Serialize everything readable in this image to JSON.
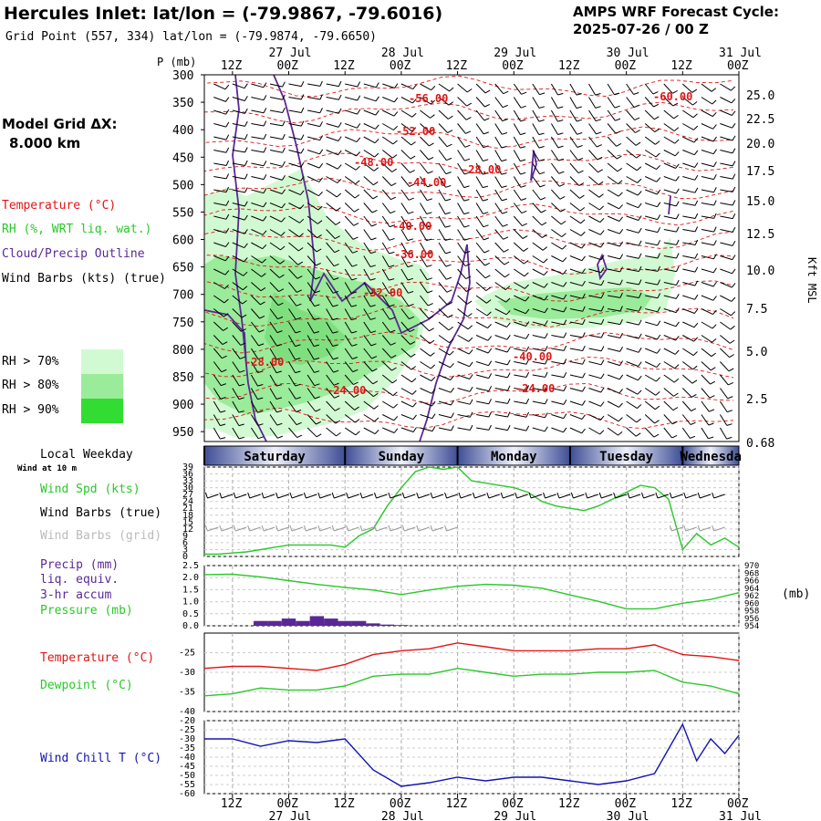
{
  "header": {
    "title": "Hercules Inlet:  lat/lon = (-79.9867, -79.6016)",
    "subtitle": "Grid Point (557, 334) lat/lon = (-79.9874, -79.6650)",
    "cycle_line1": "AMPS WRF Forecast Cycle:",
    "cycle_line2": "2025-07-26 / 00  Z"
  },
  "legend": {
    "model_grid_line1": "Model Grid ΔX:",
    "model_grid_line2": "8.000 km",
    "temperature": "Temperature (°C)",
    "rh": "RH (%, WRT liq. wat.)",
    "cloud": "Cloud/Precip Outline",
    "wind": "Wind Barbs (kts) (true)",
    "rh70": "RH > 70%",
    "rh80": "RH > 80%",
    "rh90": "RH > 90%",
    "rh70_color": "#d2fad2",
    "rh80_color": "#9aeb9a",
    "rh90_color": "#32dc32",
    "local_weekday": "Local Weekday",
    "wind_at": "Wind at 10 m",
    "wind_spd": "Wind Spd (kts)",
    "wind_barbs_true": "Wind Barbs (true)",
    "wind_barbs_grid": "Wind Barbs (grid)",
    "precip1": "Precip (mm)",
    "precip2": "liq. equiv.",
    "precip3": "3-hr accum",
    "pressure": "Pressure (mb)",
    "mb_unit": "(mb)",
    "temp2": "Temperature (°C)",
    "dewpoint": "Dewpoint (°C)",
    "windchill": "Wind Chill T (°C)"
  },
  "axes": {
    "p_label": "P (mb)",
    "kft_label": "Kft MSL",
    "time_ticks": [
      "12Z",
      "00Z",
      "12Z",
      "00Z",
      "12Z",
      "00Z",
      "12Z",
      "00Z",
      "12Z",
      "00Z"
    ],
    "date_labels": [
      "27 Jul",
      "28 Jul",
      "29 Jul",
      "30 Jul",
      "31 Jul"
    ],
    "pressure_levels": [
      "300",
      "350",
      "400",
      "450",
      "500",
      "550",
      "600",
      "650",
      "700",
      "750",
      "800",
      "850",
      "900",
      "950"
    ],
    "kft_ticks": [
      "25.0",
      "22.5",
      "20.0",
      "17.5",
      "15.0",
      "12.5",
      "10.0",
      "7.5",
      "5.0",
      "2.5",
      "0.68"
    ],
    "weekdays": [
      "Saturday",
      "Sunday",
      "Monday",
      "Tuesday",
      "Wednesda"
    ]
  },
  "chart_data": [
    {
      "type": "heatmap",
      "name": "time-height cross section",
      "x_unit": "hours from 2025-07-26 00Z",
      "x_range": [
        6,
        120
      ],
      "y_range_mb": [
        300,
        968
      ],
      "temperature_contour_labels": [
        "-56.00",
        "-52.00",
        "-48.00",
        "-44.00",
        "-40.00",
        "-36.00",
        "-32.00",
        "-28.00",
        "-24.00",
        "-28.00",
        "-60.00",
        "-40.00",
        "-24.00",
        "-20.00"
      ],
      "temperature_color": "#e11414",
      "cloud_outline_color": "#5a2896"
    },
    {
      "type": "line",
      "name": "Wind Spd (kts)",
      "x": [
        6,
        9,
        12,
        15,
        18,
        21,
        24,
        27,
        30,
        33,
        36,
        39,
        42,
        45,
        48,
        51,
        54,
        57,
        60,
        63,
        66,
        69,
        72,
        75,
        78,
        81,
        84,
        87,
        90,
        93,
        96,
        99,
        102,
        105,
        108,
        111,
        114,
        117,
        120
      ],
      "values": [
        1,
        1,
        1.5,
        2,
        3,
        4,
        5,
        5,
        5,
        5,
        4,
        9,
        12,
        22,
        30,
        37,
        39,
        38,
        39,
        33,
        32,
        31,
        30,
        28,
        24,
        22,
        21,
        20,
        22,
        25,
        28,
        31,
        30,
        25,
        3,
        10,
        5,
        8,
        4
      ],
      "ylim": [
        0,
        39
      ],
      "ticks": [
        "39",
        "36",
        "33",
        "30",
        "27",
        "24",
        "21",
        "18",
        "15",
        "12",
        "9",
        "6",
        "3",
        "0"
      ],
      "color": "#2ac82a"
    },
    {
      "type": "bar",
      "name": "Precip (mm)",
      "x": [
        18,
        21,
        24,
        27,
        30,
        33,
        36,
        39,
        42,
        45,
        48
      ],
      "values": [
        0.2,
        0.2,
        0.3,
        0.2,
        0.4,
        0.3,
        0.2,
        0.2,
        0.1,
        0.05,
        0.03
      ],
      "ylim": [
        0,
        2.5
      ],
      "ticks": [
        "2.5",
        "2.0",
        "1.5",
        "1.0",
        "0.5",
        "0.0"
      ],
      "color": "#5a2896"
    },
    {
      "type": "line",
      "name": "Pressure (mb)",
      "x": [
        6,
        12,
        18,
        24,
        30,
        36,
        42,
        48,
        54,
        60,
        66,
        72,
        78,
        84,
        90,
        96,
        102,
        108,
        114,
        120
      ],
      "values": [
        967.6,
        967.7,
        967.0,
        966.0,
        965.0,
        964.2,
        963.5,
        962.3,
        963.5,
        964.5,
        965.0,
        964.8,
        964.0,
        962.2,
        960.5,
        958.5,
        958.5,
        960.0,
        961.0,
        962.8
      ],
      "ylim": [
        954,
        970
      ],
      "ticks": [
        "970",
        "968",
        "966",
        "964",
        "962",
        "960",
        "958",
        "956",
        "954"
      ],
      "color": "#2ac82a"
    },
    {
      "type": "line",
      "name": "Temperature (°C)",
      "series": [
        {
          "name": "Temperature (°C)",
          "color": "#e11414",
          "x": [
            6,
            12,
            18,
            24,
            30,
            36,
            42,
            48,
            54,
            60,
            66,
            72,
            78,
            84,
            90,
            96,
            102,
            108,
            114,
            120
          ],
          "values": [
            -29,
            -28.5,
            -28.5,
            -29,
            -29.5,
            -28,
            -25.5,
            -24.5,
            -24,
            -22.5,
            -23.5,
            -24.5,
            -24.5,
            -24.5,
            -24,
            -24,
            -23,
            -25.5,
            -26,
            -27
          ]
        },
        {
          "name": "Dewpoint (°C)",
          "color": "#2ac82a",
          "x": [
            6,
            12,
            18,
            24,
            30,
            36,
            42,
            48,
            54,
            60,
            66,
            72,
            78,
            84,
            90,
            96,
            102,
            108,
            114,
            120
          ],
          "values": [
            -36,
            -35.5,
            -34,
            -34.5,
            -34.5,
            -33.5,
            -31,
            -30.5,
            -30.5,
            -29,
            -30,
            -31,
            -30.5,
            -30.5,
            -30,
            -30,
            -29.5,
            -32.5,
            -33.5,
            -35.5
          ]
        }
      ],
      "ylim": [
        -40,
        -20
      ],
      "ticks": [
        "-25",
        "-30",
        "-35",
        "-40"
      ]
    },
    {
      "type": "line",
      "name": "Wind Chill T (°C)",
      "x": [
        6,
        12,
        18,
        24,
        30,
        36,
        42,
        48,
        54,
        60,
        66,
        72,
        78,
        84,
        90,
        96,
        102,
        108,
        111,
        114,
        117,
        120
      ],
      "values": [
        -30,
        -30,
        -34,
        -31,
        -32,
        -30,
        -47,
        -56,
        -54,
        -51,
        -53,
        -51,
        -51,
        -53,
        -55,
        -53,
        -49,
        -22,
        -42,
        -30,
        -38,
        -28
      ],
      "ylim": [
        -60,
        -20
      ],
      "ticks": [
        "-20",
        "-25",
        "-30",
        "-35",
        "-40",
        "-45",
        "-50",
        "-55",
        "-60"
      ],
      "color": "#1414b4"
    }
  ]
}
